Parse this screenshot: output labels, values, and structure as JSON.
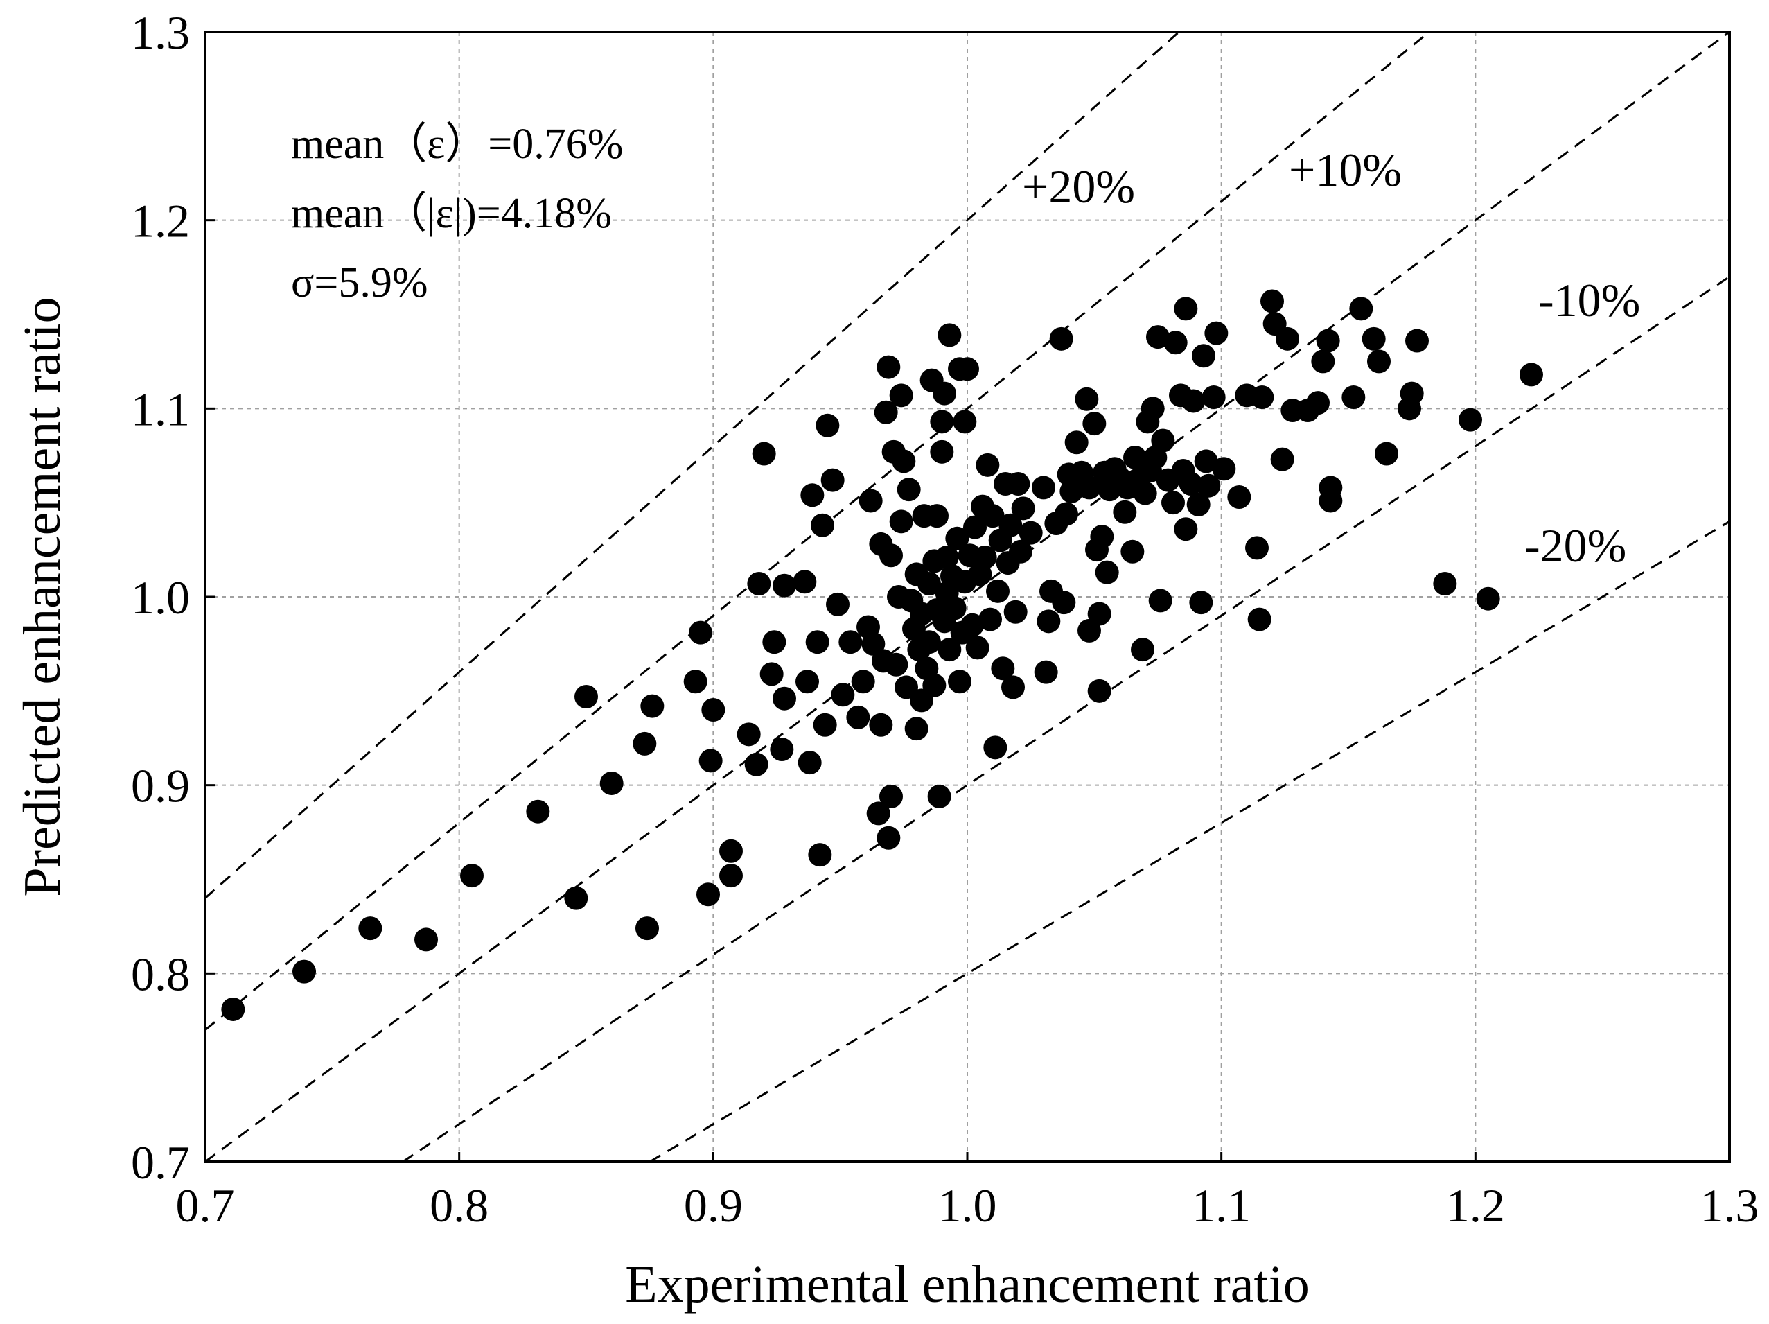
{
  "chart_data": {
    "type": "scatter",
    "xlabel": "Experimental enhancement ratio",
    "ylabel": "Predicted enhancement ratio",
    "xlim": [
      0.7,
      1.3
    ],
    "ylim": [
      0.7,
      1.3
    ],
    "xticks": [
      "0.7",
      "0.8",
      "0.9",
      "1.0",
      "1.1",
      "1.2",
      "1.3"
    ],
    "yticks": [
      "0.7",
      "0.8",
      "0.9",
      "1.0",
      "1.1",
      "1.2",
      "1.3"
    ],
    "grid": true,
    "stats": [
      "mean（ε）=0.76%",
      "mean（|ε|)=4.18%",
      "σ=5.9%"
    ],
    "reference_lines": [
      {
        "label": "+20%",
        "factor": 1.2
      },
      {
        "label": "+10%",
        "factor": 1.1
      },
      {
        "label": "",
        "factor": 1.0
      },
      {
        "label": "-10%",
        "factor": 0.9
      },
      {
        "label": "-20%",
        "factor": 0.8
      }
    ],
    "points": [
      [
        0.711,
        0.781
      ],
      [
        0.739,
        0.801
      ],
      [
        0.765,
        0.824
      ],
      [
        0.787,
        0.818
      ],
      [
        0.805,
        0.852
      ],
      [
        0.831,
        0.886
      ],
      [
        0.846,
        0.84
      ],
      [
        0.85,
        0.947
      ],
      [
        0.86,
        0.901
      ],
      [
        0.873,
        0.922
      ],
      [
        0.874,
        0.824
      ],
      [
        0.876,
        0.942
      ],
      [
        0.893,
        0.955
      ],
      [
        0.895,
        0.981
      ],
      [
        0.898,
        0.842
      ],
      [
        0.899,
        0.913
      ],
      [
        0.9,
        0.94
      ],
      [
        0.907,
        0.865
      ],
      [
        0.907,
        0.852
      ],
      [
        0.914,
        0.927
      ],
      [
        0.917,
        0.911
      ],
      [
        0.918,
        1.007
      ],
      [
        0.92,
        1.076
      ],
      [
        0.923,
        0.959
      ],
      [
        0.924,
        0.976
      ],
      [
        0.927,
        0.919
      ],
      [
        0.928,
        0.946
      ],
      [
        0.928,
        1.006
      ],
      [
        0.936,
        1.008
      ],
      [
        0.937,
        0.955
      ],
      [
        0.938,
        0.912
      ],
      [
        0.939,
        1.054
      ],
      [
        0.941,
        0.976
      ],
      [
        0.942,
        0.863
      ],
      [
        0.943,
        1.038
      ],
      [
        0.944,
        0.932
      ],
      [
        0.945,
        1.091
      ],
      [
        0.947,
        1.062
      ],
      [
        0.949,
        0.996
      ],
      [
        0.951,
        0.948
      ],
      [
        0.954,
        0.976
      ],
      [
        0.957,
        0.936
      ],
      [
        0.959,
        0.955
      ],
      [
        0.961,
        0.984
      ],
      [
        0.962,
        1.051
      ],
      [
        0.963,
        0.975
      ],
      [
        0.965,
        0.885
      ],
      [
        0.966,
        1.028
      ],
      [
        0.966,
        0.932
      ],
      [
        0.967,
        0.966
      ],
      [
        0.968,
        1.098
      ],
      [
        0.969,
        1.122
      ],
      [
        0.969,
        0.872
      ],
      [
        0.97,
        0.894
      ],
      [
        0.97,
        1.022
      ],
      [
        0.971,
        1.077
      ],
      [
        0.972,
        0.964
      ],
      [
        0.973,
        1.0
      ],
      [
        0.974,
        1.04
      ],
      [
        0.974,
        1.107
      ],
      [
        0.975,
        1.072
      ],
      [
        0.976,
        0.952
      ],
      [
        0.977,
        1.057
      ],
      [
        0.978,
        0.998
      ],
      [
        0.979,
        0.983
      ],
      [
        0.98,
        1.012
      ],
      [
        0.98,
        0.93
      ],
      [
        0.981,
        0.972
      ],
      [
        0.982,
        0.991
      ],
      [
        0.982,
        0.945
      ],
      [
        0.983,
        1.043
      ],
      [
        0.984,
        0.962
      ],
      [
        0.985,
        1.007
      ],
      [
        0.985,
        0.976
      ],
      [
        0.986,
        1.115
      ],
      [
        0.987,
        1.019
      ],
      [
        0.987,
        0.953
      ],
      [
        0.988,
        0.993
      ],
      [
        0.988,
        1.043
      ],
      [
        0.989,
        0.894
      ],
      [
        0.99,
        1.077
      ],
      [
        0.99,
        1.093
      ],
      [
        0.991,
        1.108
      ],
      [
        0.991,
        0.987
      ],
      [
        0.992,
        1.002
      ],
      [
        0.992,
        1.021
      ],
      [
        0.993,
        0.972
      ],
      [
        0.993,
        1.139
      ],
      [
        0.994,
        1.011
      ],
      [
        0.995,
        0.994
      ],
      [
        0.996,
        1.031
      ],
      [
        0.997,
        0.955
      ],
      [
        0.997,
        1.121
      ],
      [
        0.998,
        0.981
      ],
      [
        0.999,
        1.093
      ],
      [
        0.999,
        1.008
      ],
      [
        1.0,
        1.121
      ],
      [
        1.001,
        1.022
      ],
      [
        1.002,
        0.985
      ],
      [
        1.003,
        1.037
      ],
      [
        1.004,
        0.973
      ],
      [
        1.005,
        1.012
      ],
      [
        1.006,
        1.048
      ],
      [
        1.007,
        1.021
      ],
      [
        1.008,
        1.07
      ],
      [
        1.009,
        0.988
      ],
      [
        1.01,
        1.043
      ],
      [
        1.011,
        0.92
      ],
      [
        1.012,
        1.003
      ],
      [
        1.013,
        1.03
      ],
      [
        1.014,
        0.962
      ],
      [
        1.015,
        1.06
      ],
      [
        1.016,
        1.018
      ],
      [
        1.017,
        1.038
      ],
      [
        1.018,
        0.952
      ],
      [
        1.019,
        0.992
      ],
      [
        1.02,
        1.06
      ],
      [
        1.021,
        1.024
      ],
      [
        1.022,
        1.047
      ],
      [
        1.025,
        1.034
      ],
      [
        1.03,
        1.058
      ],
      [
        1.031,
        0.96
      ],
      [
        1.032,
        0.987
      ],
      [
        1.033,
        1.003
      ],
      [
        1.035,
        1.039
      ],
      [
        1.037,
        1.137
      ],
      [
        1.038,
        0.997
      ],
      [
        1.039,
        1.044
      ],
      [
        1.04,
        1.065
      ],
      [
        1.041,
        1.056
      ],
      [
        1.043,
        1.082
      ],
      [
        1.045,
        1.066
      ],
      [
        1.047,
        1.105
      ],
      [
        1.048,
        1.058
      ],
      [
        1.048,
        0.982
      ],
      [
        1.05,
        1.092
      ],
      [
        1.051,
        1.025
      ],
      [
        1.052,
        0.991
      ],
      [
        1.052,
        0.95
      ],
      [
        1.053,
        1.032
      ],
      [
        1.054,
        1.066
      ],
      [
        1.055,
        1.013
      ],
      [
        1.056,
        1.057
      ],
      [
        1.058,
        1.068
      ],
      [
        1.06,
        1.063
      ],
      [
        1.062,
        1.045
      ],
      [
        1.063,
        1.058
      ],
      [
        1.065,
        1.024
      ],
      [
        1.066,
        1.074
      ],
      [
        1.067,
        1.062
      ],
      [
        1.069,
        0.972
      ],
      [
        1.07,
        1.055
      ],
      [
        1.071,
        1.093
      ],
      [
        1.072,
        1.067
      ],
      [
        1.073,
        1.1
      ],
      [
        1.074,
        1.074
      ],
      [
        1.075,
        1.138
      ],
      [
        1.076,
        0.998
      ],
      [
        1.077,
        1.083
      ],
      [
        1.079,
        1.062
      ],
      [
        1.081,
        1.05
      ],
      [
        1.082,
        1.135
      ],
      [
        1.084,
        1.107
      ],
      [
        1.085,
        1.067
      ],
      [
        1.086,
        1.036
      ],
      [
        1.086,
        1.153
      ],
      [
        1.088,
        1.06
      ],
      [
        1.089,
        1.104
      ],
      [
        1.091,
        1.049
      ],
      [
        1.092,
        0.997
      ],
      [
        1.093,
        1.128
      ],
      [
        1.094,
        1.072
      ],
      [
        1.095,
        1.059
      ],
      [
        1.097,
        1.106
      ],
      [
        1.098,
        1.14
      ],
      [
        1.101,
        1.068
      ],
      [
        1.107,
        1.053
      ],
      [
        1.11,
        1.107
      ],
      [
        1.114,
        1.026
      ],
      [
        1.115,
        0.988
      ],
      [
        1.116,
        1.106
      ],
      [
        1.12,
        1.157
      ],
      [
        1.121,
        1.145
      ],
      [
        1.124,
        1.073
      ],
      [
        1.126,
        1.137
      ],
      [
        1.128,
        1.099
      ],
      [
        1.134,
        1.099
      ],
      [
        1.138,
        1.103
      ],
      [
        1.14,
        1.125
      ],
      [
        1.142,
        1.136
      ],
      [
        1.143,
        1.058
      ],
      [
        1.143,
        1.051
      ],
      [
        1.152,
        1.106
      ],
      [
        1.155,
        1.153
      ],
      [
        1.16,
        1.137
      ],
      [
        1.162,
        1.125
      ],
      [
        1.165,
        1.076
      ],
      [
        1.174,
        1.1
      ],
      [
        1.175,
        1.108
      ],
      [
        1.177,
        1.136
      ],
      [
        1.188,
        1.007
      ],
      [
        1.198,
        1.094
      ],
      [
        1.205,
        0.999
      ],
      [
        1.222,
        1.118
      ]
    ]
  }
}
